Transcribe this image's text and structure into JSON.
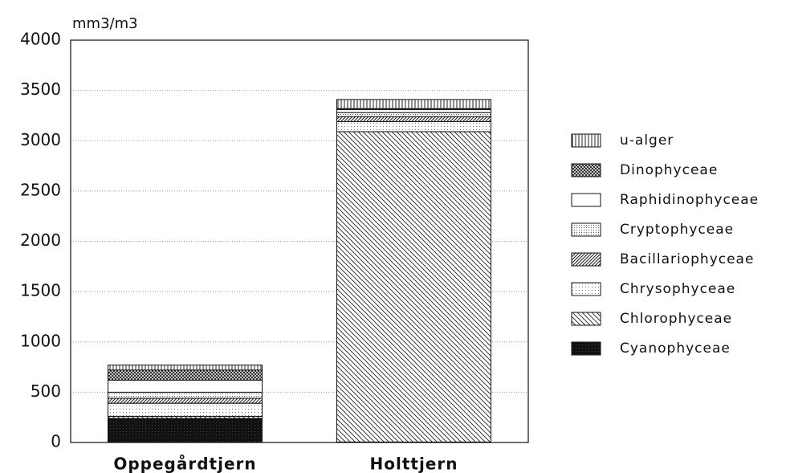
{
  "chart_data": {
    "type": "stacked_bar",
    "y_label": "mm3/m3",
    "categories": [
      "Oppegårdtjern",
      "Holttjern"
    ],
    "series": [
      {
        "name": "Cyanophyceae",
        "color": "#111111",
        "values": [
          240,
          5
        ]
      },
      {
        "name": "Chlorophyceae",
        "color": "#ffffff",
        "values": [
          20,
          3085
        ]
      },
      {
        "name": "Chrysophyceae",
        "color": "#ffffff",
        "values": [
          130,
          100
        ]
      },
      {
        "name": "Bacillariophyceae",
        "color": "#ffffff",
        "values": [
          50,
          50
        ]
      },
      {
        "name": "Cryptophyceae",
        "color": "#ffffff",
        "values": [
          60,
          40
        ]
      },
      {
        "name": "Raphidinophyceae",
        "color": "#ffffff",
        "values": [
          120,
          30
        ]
      },
      {
        "name": "Dinophyceae",
        "color": "#ffffff",
        "values": [
          100,
          10
        ]
      },
      {
        "name": "u-alger",
        "color": "#ffffff",
        "values": [
          50,
          90
        ]
      }
    ],
    "ylim": [
      0,
      4000
    ],
    "yticks": [
      0,
      500,
      1000,
      1500,
      2000,
      2500,
      3000,
      3500,
      4000
    ],
    "grid": true
  }
}
